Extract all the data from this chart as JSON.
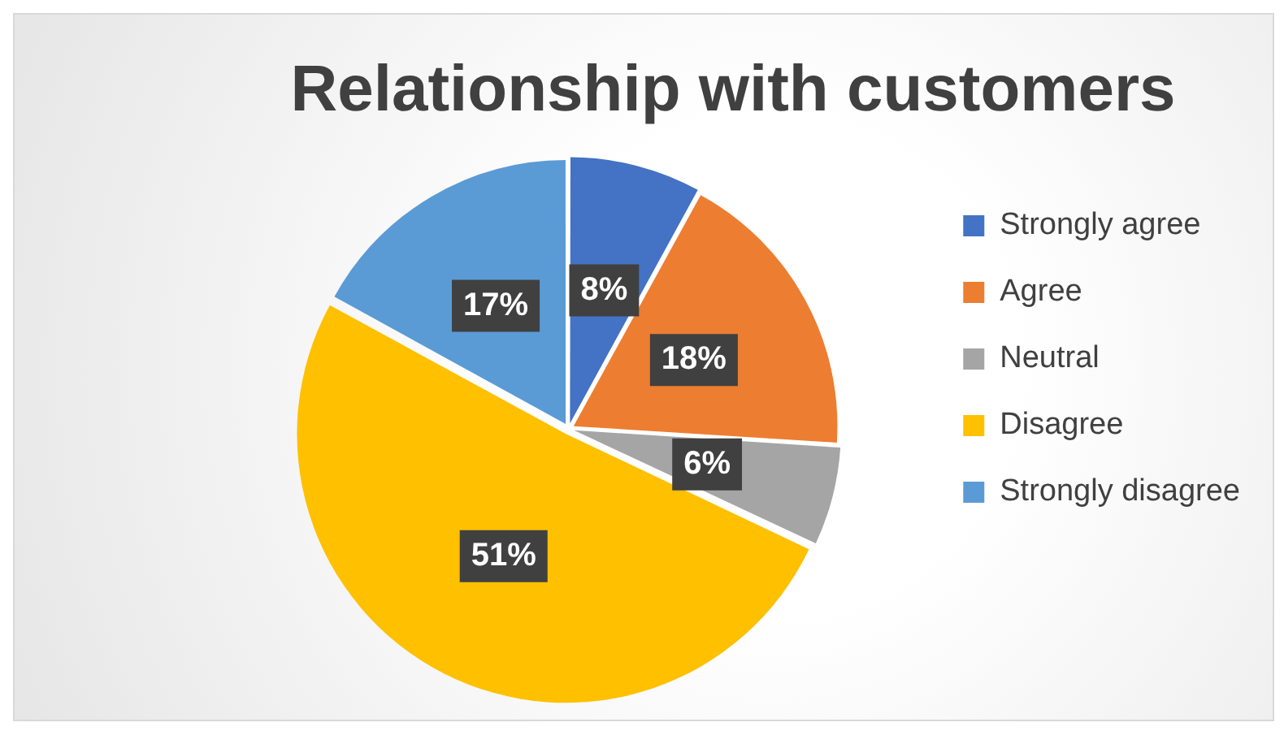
{
  "chart_data": {
    "type": "pie",
    "title": "Relationship with customers",
    "categories": [
      "Strongly agree",
      "Agree",
      "Neutral",
      "Disagree",
      "Strongly disagree"
    ],
    "values": [
      8,
      18,
      6,
      51,
      17
    ],
    "colors": [
      "#4472c4",
      "#ed7d31",
      "#a5a5a5",
      "#ffc000",
      "#5b9bd5"
    ],
    "value_labels": [
      "8%",
      "18%",
      "6%",
      "51%",
      "17%"
    ],
    "legend": "right"
  }
}
